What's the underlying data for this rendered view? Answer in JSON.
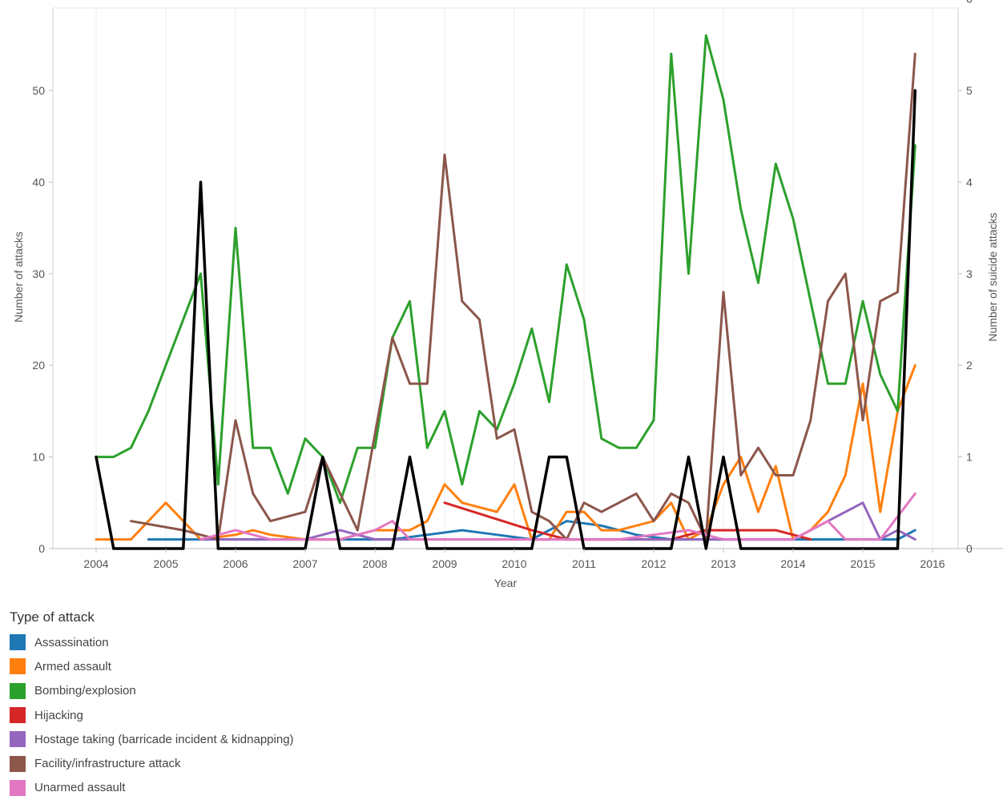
{
  "chart_data": {
    "type": "line",
    "xlabel": "Year",
    "ylabel": "Number of attacks",
    "y2label": "Number of suicide attacks",
    "xlim": [
      2003.6,
      2016.5
    ],
    "ylim": [
      0,
      59
    ],
    "y2lim": [
      0,
      5.9
    ],
    "x_ticks": [
      2004,
      2005,
      2006,
      2007,
      2008,
      2009,
      2010,
      2011,
      2012,
      2013,
      2014,
      2015,
      2016
    ],
    "y_ticks": [
      0,
      10,
      20,
      30,
      40,
      50
    ],
    "y2_ticks": [
      0,
      1,
      2,
      3,
      4,
      5,
      6
    ],
    "grid": "vertical",
    "legend_title": "Type of attack",
    "legend_position": "bottom-left",
    "series": [
      {
        "name": "Assassination",
        "color": "#1f77b4",
        "axis": "left",
        "x": [
          2004.75,
          2005.25,
          2005.75,
          2006.5,
          2007.5,
          2008.25,
          2008.75,
          2009.25,
          2009.75,
          2010.25,
          2010.75,
          2011.25,
          2011.75,
          2012.25,
          2012.75,
          2013.25,
          2013.75,
          2014.25,
          2014.75,
          2015.25,
          2015.5,
          2015.75
        ],
        "y": [
          1,
          1,
          1,
          1,
          1,
          1,
          1.5,
          2,
          1.5,
          1,
          3,
          2.5,
          1.5,
          1,
          1,
          1,
          1,
          1,
          1,
          1,
          1,
          2
        ]
      },
      {
        "name": "Armed assault",
        "color": "#ff7f0e",
        "axis": "left",
        "x": [
          2004,
          2004.25,
          2004.5,
          2005,
          2005.5,
          2006,
          2006.25,
          2006.5,
          2007,
          2007.5,
          2008,
          2008.5,
          2008.75,
          2009,
          2009.25,
          2009.75,
          2010,
          2010.25,
          2010.5,
          2010.75,
          2011,
          2011.25,
          2011.5,
          2012,
          2012.25,
          2012.5,
          2012.75,
          2013,
          2013.25,
          2013.5,
          2013.75,
          2014,
          2014.25,
          2014.5,
          2014.75,
          2015,
          2015.25,
          2015.5,
          2015.75
        ],
        "y": [
          1,
          1,
          1,
          5,
          1,
          1.5,
          2,
          1.5,
          1,
          1,
          2,
          2,
          3,
          7,
          5,
          4,
          7,
          1,
          1,
          4,
          4,
          2,
          2,
          3,
          5,
          1,
          2,
          7,
          10,
          4,
          9,
          1,
          2,
          4,
          8,
          18,
          4,
          15,
          20
        ]
      },
      {
        "name": "Bombing/explosion",
        "color": "#2ca02c",
        "axis": "left",
        "x": [
          2004,
          2004.25,
          2004.5,
          2004.75,
          2005,
          2005.5,
          2005.75,
          2006,
          2006.25,
          2006.5,
          2006.75,
          2007,
          2007.25,
          2007.5,
          2007.75,
          2008,
          2008.25,
          2008.5,
          2008.75,
          2009,
          2009.25,
          2009.5,
          2009.75,
          2010,
          2010.25,
          2010.5,
          2010.75,
          2011,
          2011.25,
          2011.5,
          2011.75,
          2012,
          2012.25,
          2012.5,
          2012.75,
          2013,
          2013.25,
          2013.5,
          2013.75,
          2014,
          2014.25,
          2014.5,
          2014.75,
          2015,
          2015.25,
          2015.5,
          2015.75
        ],
        "y": [
          10,
          10,
          11,
          15,
          20,
          30,
          7,
          35,
          11,
          11,
          6,
          12,
          10,
          5,
          11,
          11,
          23,
          27,
          11,
          15,
          7,
          15,
          13,
          18,
          24,
          16,
          31,
          25,
          12,
          11,
          11,
          14,
          54,
          30,
          56,
          49,
          37,
          29,
          42,
          36,
          27,
          18,
          18,
          27,
          19,
          15,
          44
        ]
      },
      {
        "name": "Hijacking",
        "color": "#d62728",
        "axis": "left",
        "x": [
          2009,
          2010.25,
          2010.75,
          2011.25,
          2011.75,
          2012.25,
          2012.75,
          2013.25,
          2013.75,
          2014.25
        ],
        "y": [
          5,
          2,
          1,
          1,
          1,
          1,
          2,
          2,
          2,
          1
        ]
      },
      {
        "name": "Hostage taking (barricade incident & kidnapping)",
        "color": "#9467bd",
        "axis": "left",
        "x": [
          2005.5,
          2006,
          2006.5,
          2007,
          2007.5,
          2008,
          2008.5,
          2009,
          2009.5,
          2010,
          2010.5,
          2011,
          2011.5,
          2012,
          2012.5,
          2013,
          2013.5,
          2014,
          2014.5,
          2015,
          2015.25,
          2015.5,
          2015.75
        ],
        "y": [
          1,
          1,
          1,
          1,
          2,
          1,
          1,
          1,
          1,
          1,
          1,
          1,
          1,
          1,
          1,
          1,
          1,
          1,
          3,
          5,
          1,
          2,
          1
        ]
      },
      {
        "name": "Facility/infrastructure attack",
        "color": "#8c564b",
        "axis": "left",
        "x": [
          2004.5,
          2005.25,
          2005.75,
          2006,
          2006.25,
          2006.5,
          2007,
          2007.25,
          2007.75,
          2008.25,
          2008.5,
          2008.75,
          2009,
          2009.25,
          2009.5,
          2009.75,
          2010,
          2010.25,
          2010.5,
          2010.75,
          2011,
          2011.25,
          2011.75,
          2012,
          2012.25,
          2012.5,
          2012.75,
          2013,
          2013.25,
          2013.5,
          2013.75,
          2014,
          2014.25,
          2014.5,
          2014.75,
          2015,
          2015.25,
          2015.5,
          2015.75
        ],
        "y": [
          3,
          2,
          1,
          14,
          6,
          3,
          4,
          10,
          2,
          23,
          18,
          18,
          43,
          27,
          25,
          12,
          13,
          4,
          3,
          1,
          5,
          4,
          6,
          3,
          6,
          5,
          1,
          28,
          8,
          11,
          8,
          8,
          14,
          27,
          30,
          14,
          27,
          28,
          54
        ]
      },
      {
        "name": "Unarmed assault",
        "color": "#e377c2",
        "axis": "left",
        "x": [
          2005.5,
          2006,
          2006.5,
          2007,
          2007.5,
          2008,
          2008.25,
          2008.5,
          2009,
          2009.5,
          2010,
          2010.5,
          2011,
          2011.5,
          2012,
          2012.5,
          2013,
          2013.5,
          2014,
          2014.5,
          2014.75,
          2015,
          2015.25,
          2015.75
        ],
        "y": [
          1,
          2,
          1,
          1,
          1,
          2,
          3,
          1,
          1,
          1,
          1,
          1,
          1,
          1,
          1.5,
          2,
          1,
          1,
          1,
          3,
          1,
          1,
          1,
          6
        ]
      },
      {
        "name": "Suicide attacks",
        "color": "#000000",
        "axis": "right",
        "x": [
          2004,
          2004.25,
          2005.25,
          2005.5,
          2005.75,
          2007,
          2007.25,
          2007.5,
          2008.25,
          2008.5,
          2008.75,
          2010.25,
          2010.5,
          2010.75,
          2011,
          2012.25,
          2012.5,
          2012.75,
          2013,
          2013.25,
          2015.5,
          2015.75
        ],
        "y": [
          1,
          0,
          0,
          4,
          0,
          0,
          1,
          0,
          0,
          1,
          0,
          0,
          1,
          1,
          0,
          0,
          1,
          0,
          1,
          0,
          0,
          5
        ]
      }
    ]
  }
}
